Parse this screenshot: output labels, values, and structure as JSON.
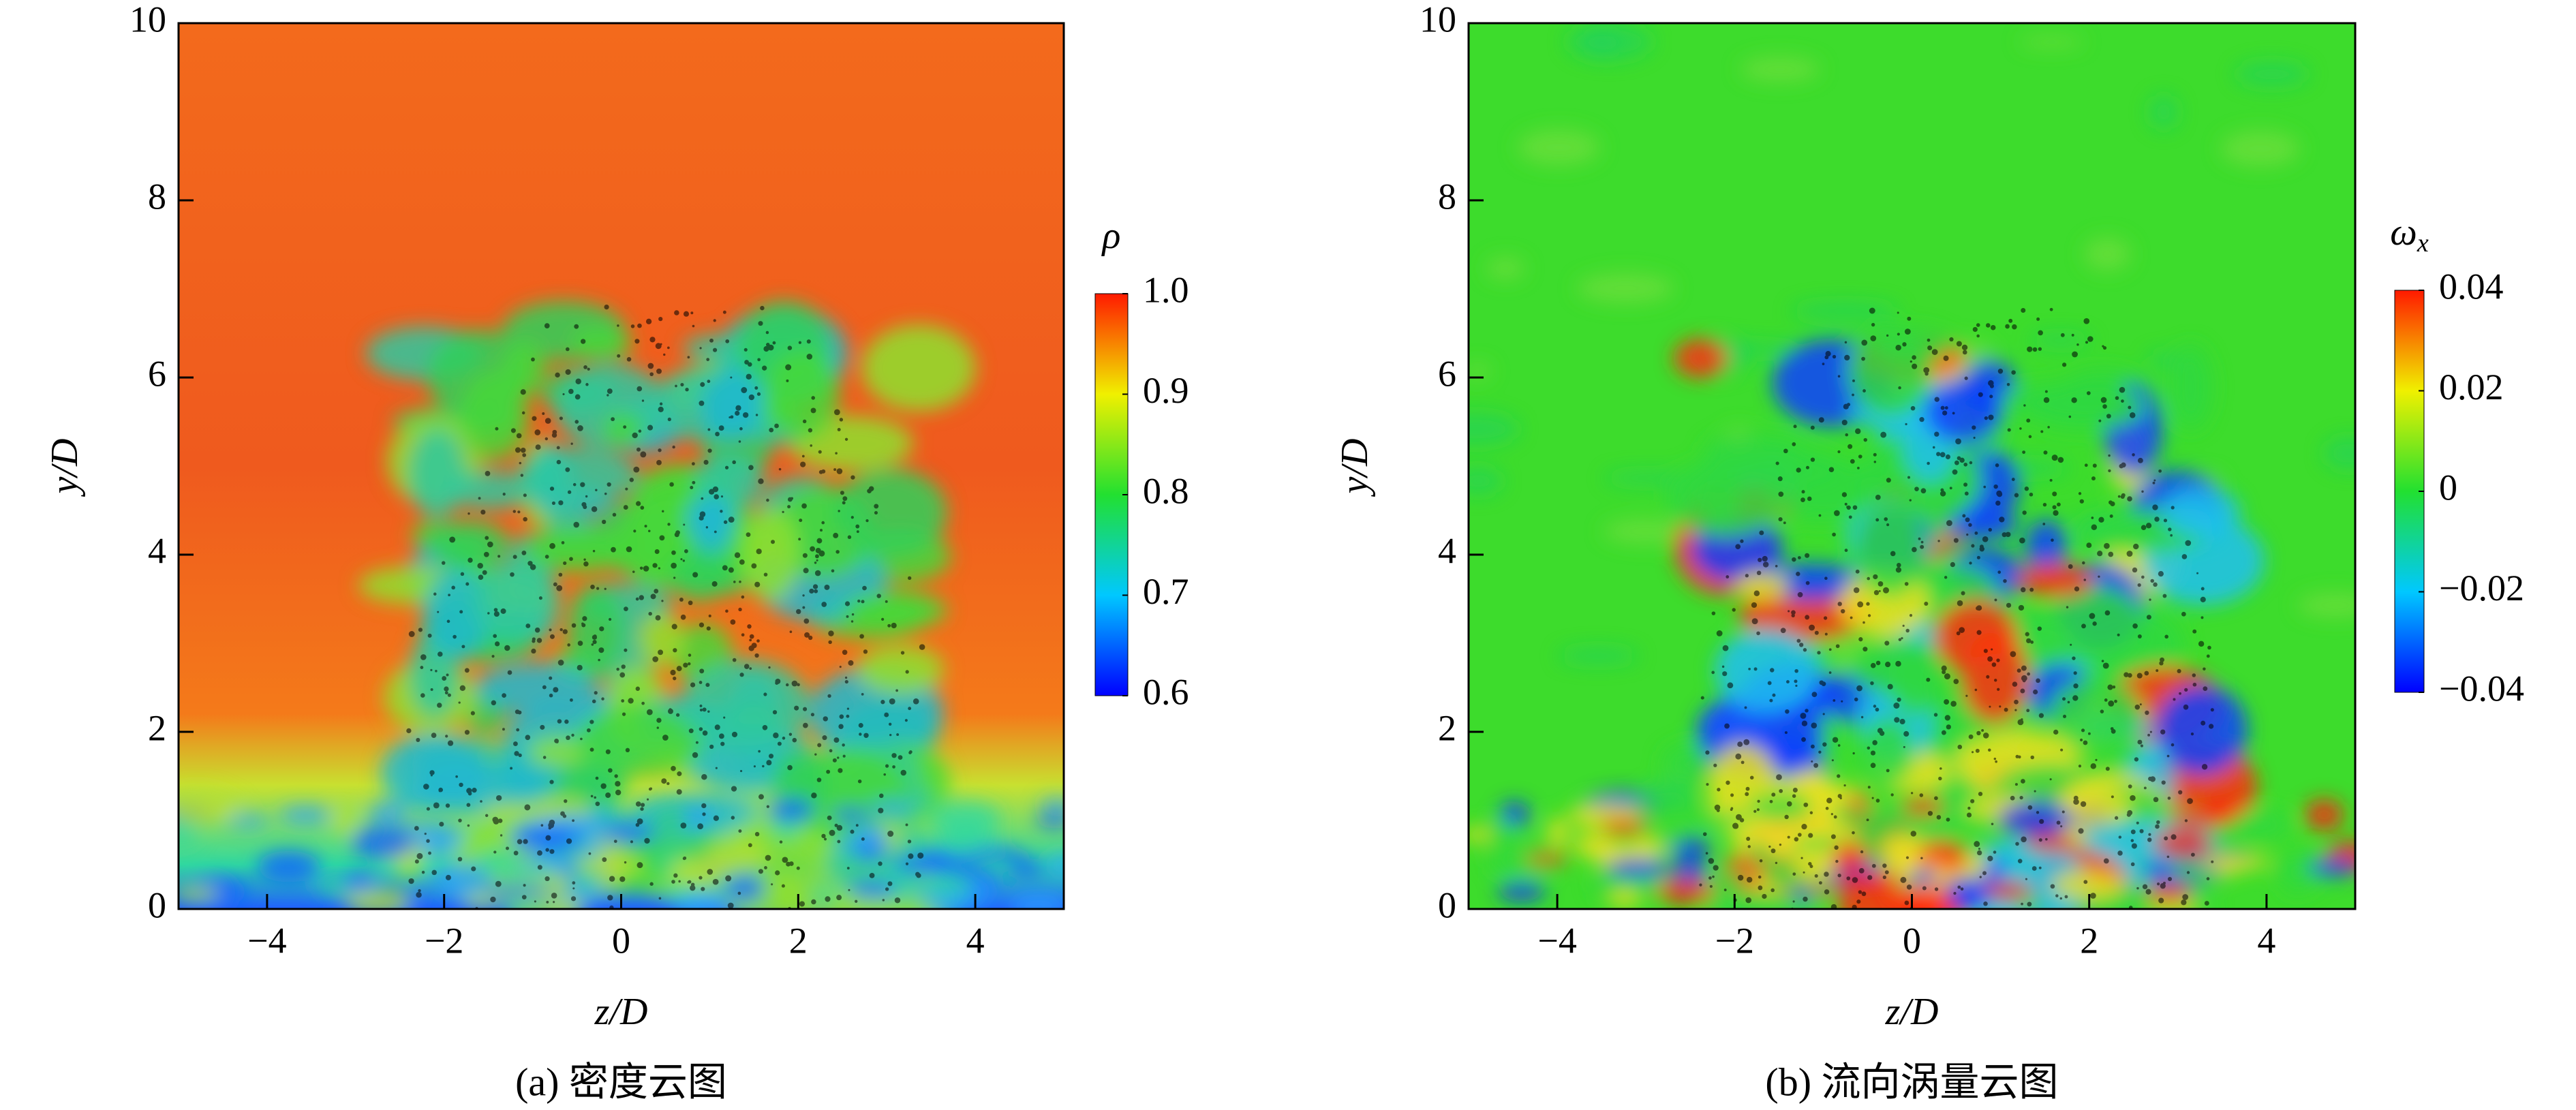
{
  "chart_data": [
    {
      "type": "contour",
      "caption": "(a) 密度云图",
      "xlabel": "z/D",
      "ylabel": "y/D",
      "xlim": [
        -5,
        5
      ],
      "xticks": [
        {
          "value": -4,
          "label": "−4"
        },
        {
          "value": -2,
          "label": "−2"
        },
        0,
        2,
        4
      ],
      "ylim": [
        0,
        10
      ],
      "yticks": [
        0,
        2,
        4,
        6,
        8,
        10
      ],
      "colorbar_label": {
        "symbol": "ρ"
      },
      "clim": [
        0.6,
        1.0
      ],
      "cticks": [
        0.6,
        0.7,
        0.8,
        0.9,
        {
          "value": 1.0,
          "label": "1.0"
        }
      ]
    },
    {
      "type": "contour",
      "caption": "(b) 流向涡量云图",
      "xlabel": "z/D",
      "ylabel": "y/D",
      "xlim": [
        -5,
        5
      ],
      "xticks": [
        {
          "value": -4,
          "label": "−4"
        },
        {
          "value": -2,
          "label": "−2"
        },
        0,
        2,
        4
      ],
      "ylim": [
        0,
        10
      ],
      "yticks": [
        0,
        2,
        4,
        6,
        8,
        10
      ],
      "colorbar_label": {
        "symbol": "ω",
        "subscript": "x"
      },
      "clim": [
        -0.04,
        0.04
      ],
      "cticks": [
        {
          "value": -0.04,
          "label": "−0.04"
        },
        {
          "value": -0.02,
          "label": "−0.02"
        },
        0,
        0.02,
        0.04
      ]
    }
  ]
}
